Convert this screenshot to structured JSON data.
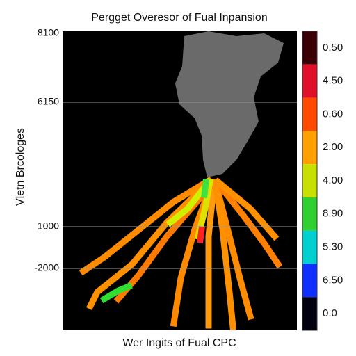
{
  "title": "Pergget Overesor of Fual Inpansion",
  "x_label": "Wer Ingits of Fual CPC",
  "y_label": "Vletn Brcologes",
  "y_axis_labels": [
    "8100",
    "6150",
    "1000",
    "-2000"
  ],
  "colorbar": [
    {
      "label": "0.50",
      "color": "#3a0006"
    },
    {
      "label": "4.50",
      "color": "#e0102a"
    },
    {
      "label": "0.60",
      "color": "#ff4a00"
    },
    {
      "label": "2.00",
      "color": "#ffa000"
    },
    {
      "label": "4.00",
      "color": "#c8e000"
    },
    {
      "label": "8.90",
      "color": "#30d030"
    },
    {
      "label": "5.30",
      "color": "#00d0d0"
    },
    {
      "label": "6.50",
      "color": "#1030ff"
    },
    {
      "label": "0.0",
      "color": "#000010"
    }
  ]
}
